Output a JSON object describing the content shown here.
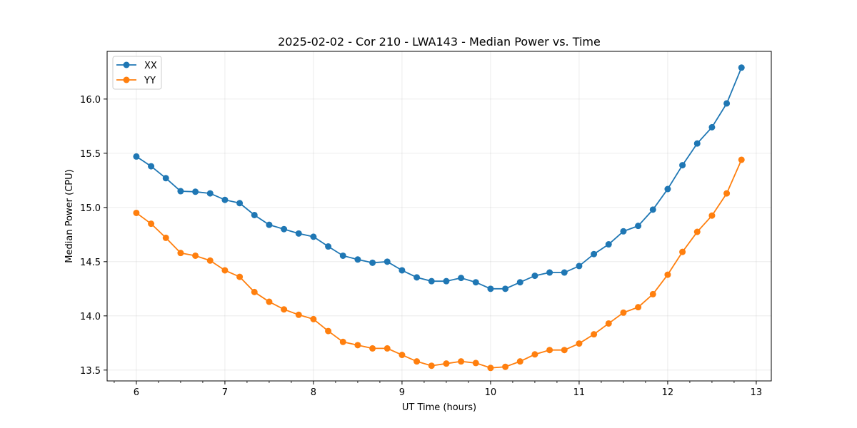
{
  "chart_data": {
    "type": "line",
    "title": "2025-02-02 - Cor 210 - LWA143 - Median Power vs. Time",
    "xlabel": "UT Time (hours)",
    "ylabel": "Median Power (CPU)",
    "xlim": [
      5.67,
      13.17
    ],
    "ylim": [
      13.4,
      16.44
    ],
    "xticks": [
      6,
      7,
      8,
      9,
      10,
      11,
      12,
      13
    ],
    "xticks_minor": [
      5.75,
      6.25,
      6.5,
      6.75,
      7.25,
      7.5,
      7.75,
      8.25,
      8.5,
      8.75,
      9.25,
      9.5,
      9.75,
      10.25,
      10.5,
      10.75,
      11.25,
      11.5,
      11.75,
      12.25,
      12.5,
      12.75,
      13.0
    ],
    "yticks": [
      13.5,
      14.0,
      14.5,
      15.0,
      15.5,
      16.0
    ],
    "ytick_labels": [
      "13.5",
      "14.0",
      "14.5",
      "15.0",
      "15.5",
      "16.0"
    ],
    "grid": true,
    "legend_position": "top-left",
    "x": [
      6.0,
      6.1667,
      6.3333,
      6.5,
      6.6667,
      6.8333,
      7.0,
      7.1667,
      7.3333,
      7.5,
      7.6667,
      7.8333,
      8.0,
      8.1667,
      8.3333,
      8.5,
      8.6667,
      8.8333,
      9.0,
      9.1667,
      9.3333,
      9.5,
      9.6667,
      9.8333,
      10.0,
      10.1667,
      10.3333,
      10.5,
      10.6667,
      10.8333,
      11.0,
      11.1667,
      11.3333,
      11.5,
      11.6667,
      11.8333,
      12.0,
      12.1667,
      12.3333,
      12.5,
      12.6667,
      12.8333
    ],
    "series": [
      {
        "name": "XX",
        "color": "#1f77b4",
        "values": [
          15.47,
          15.38,
          15.27,
          15.15,
          15.145,
          15.13,
          15.07,
          15.04,
          14.93,
          14.84,
          14.8,
          14.76,
          14.73,
          14.64,
          14.555,
          14.52,
          14.49,
          14.5,
          14.42,
          14.355,
          14.32,
          14.32,
          14.35,
          14.31,
          14.25,
          14.25,
          14.31,
          14.37,
          14.4,
          14.4,
          14.46,
          14.57,
          14.66,
          14.78,
          14.83,
          14.98,
          15.17,
          15.39,
          15.59,
          15.74,
          15.96,
          16.29
        ]
      },
      {
        "name": "YY",
        "color": "#ff7f0e",
        "values": [
          14.95,
          14.85,
          14.72,
          14.58,
          14.555,
          14.51,
          14.42,
          14.36,
          14.22,
          14.13,
          14.06,
          14.01,
          13.97,
          13.86,
          13.76,
          13.73,
          13.7,
          13.7,
          13.64,
          13.58,
          13.54,
          13.56,
          13.58,
          13.565,
          13.52,
          13.53,
          13.58,
          13.645,
          13.685,
          13.685,
          13.745,
          13.83,
          13.93,
          14.03,
          14.08,
          14.2,
          14.38,
          14.59,
          14.775,
          14.925,
          15.13,
          15.44
        ]
      }
    ]
  }
}
